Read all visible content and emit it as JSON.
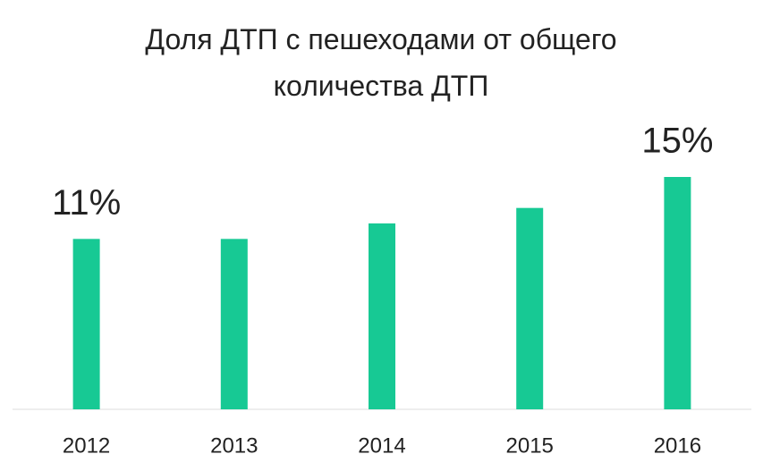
{
  "chart_data": {
    "type": "bar",
    "title": "Доля ДТП с пешеходами от общего количества ДТП",
    "categories": [
      "2012",
      "2013",
      "2014",
      "2015",
      "2016"
    ],
    "values": [
      11,
      11,
      12,
      13,
      15
    ],
    "value_labels": [
      "11%",
      null,
      null,
      null,
      "15%"
    ],
    "color": "#17c994"
  }
}
